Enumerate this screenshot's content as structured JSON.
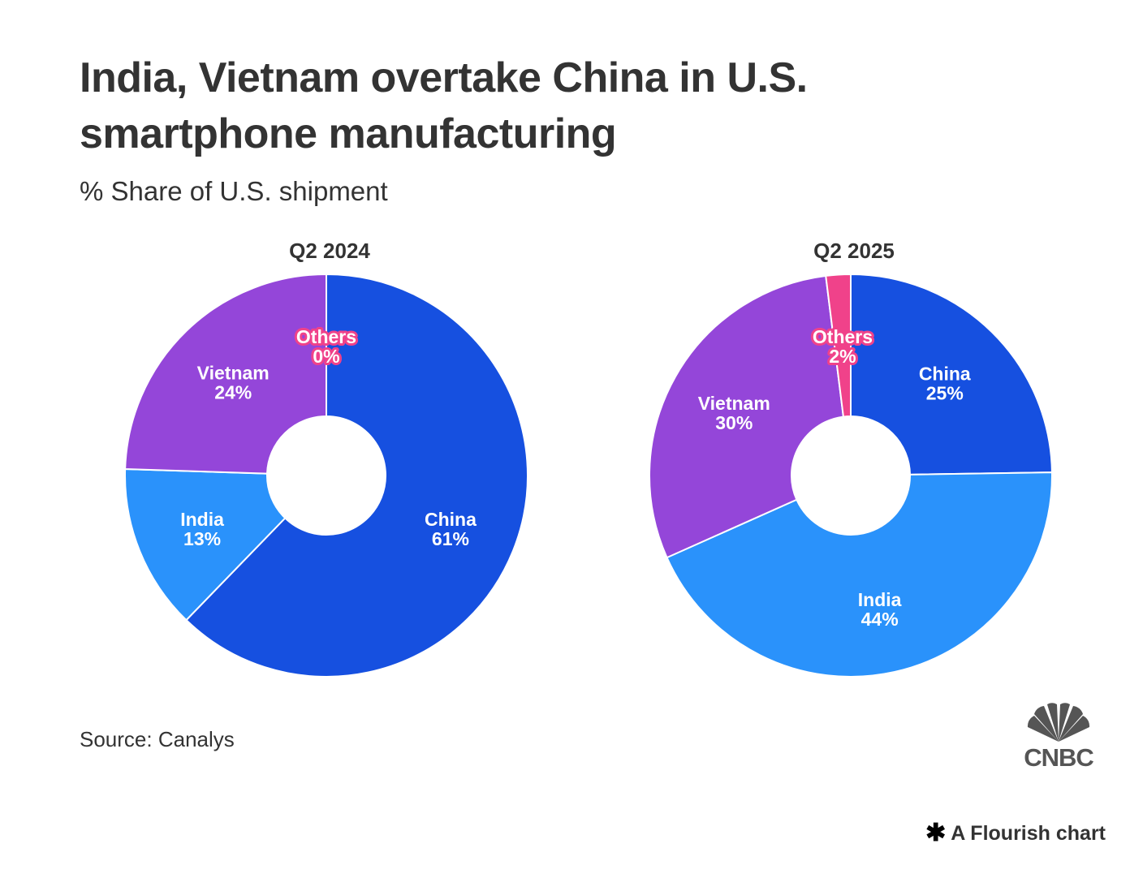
{
  "header": {
    "title": "India, Vietnam overtake China in U.S. smartphone manufacturing",
    "subtitle": "% Share of U.S. shipment"
  },
  "footer": {
    "source": "Source: Canalys",
    "logo_text": "CNBC",
    "logo_icon": "peacock-icon",
    "flourish_icon": "asterisk-icon",
    "flourish_label": "A Flourish chart"
  },
  "colors": {
    "China": "#1650E0",
    "India": "#2A92FB",
    "Vietnam": "#9446D9",
    "Others": "#F0428A"
  },
  "chart_data": [
    {
      "type": "pie",
      "variant": "donut",
      "title": "Q2 2024",
      "categories": [
        "China",
        "India",
        "Vietnam",
        "Others"
      ],
      "values": [
        61,
        13,
        24,
        0
      ],
      "labels": [
        "61%",
        "13%",
        "24%",
        "0%"
      ],
      "unit": "%"
    },
    {
      "type": "pie",
      "variant": "donut",
      "title": "Q2 2025",
      "categories": [
        "China",
        "India",
        "Vietnam",
        "Others"
      ],
      "values": [
        25,
        44,
        30,
        2
      ],
      "labels": [
        "25%",
        "44%",
        "30%",
        "2%"
      ],
      "unit": "%"
    }
  ]
}
